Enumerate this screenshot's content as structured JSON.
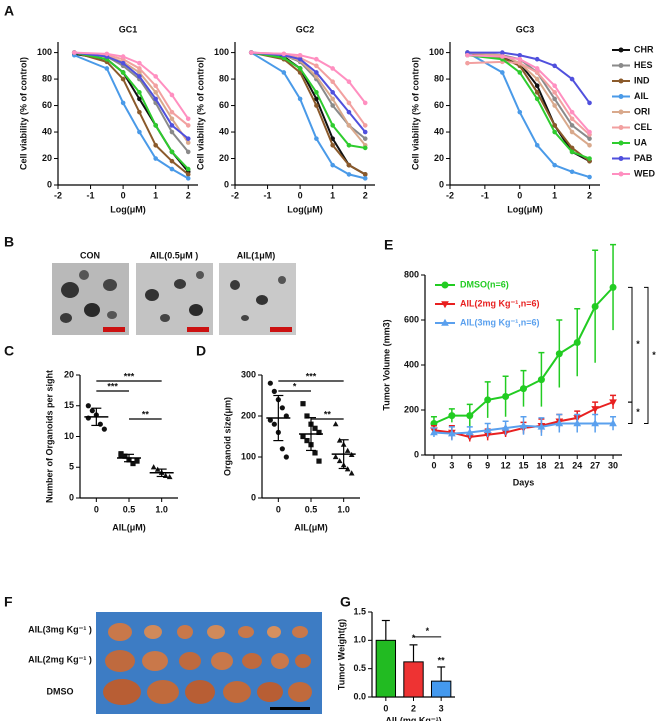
{
  "panel_labels": [
    "A",
    "B",
    "C",
    "D",
    "E",
    "F",
    "G"
  ],
  "organoid_images": [
    "CON",
    "AIL(0.5μM )",
    "AIL(1μM)"
  ],
  "tumor_rows": [
    "AIL(3mg Kg⁻¹ )",
    "AIL(2mg Kg⁻¹ )",
    "DMSO"
  ],
  "shared_legend": [
    {
      "name": "CHR",
      "color": "#111111"
    },
    {
      "name": "HES",
      "color": "#8a8a8a"
    },
    {
      "name": "IND",
      "color": "#8b5a2b"
    },
    {
      "name": "AIL",
      "color": "#4a9ae8"
    },
    {
      "name": "ORI",
      "color": "#d9a98c"
    },
    {
      "name": "CEL",
      "color": "#f2a0a0"
    },
    {
      "name": "UA",
      "color": "#2ecc2e"
    },
    {
      "name": "PAB",
      "color": "#5050dd"
    },
    {
      "name": "WED",
      "color": "#ff8fc0"
    }
  ],
  "chart_data": [
    {
      "type": "line",
      "title": "GC1",
      "xlabel": "Log(μM)",
      "ylabel": "Cell viability (% of control)",
      "x": [
        -1.5,
        -0.5,
        0,
        0.5,
        1,
        1.5,
        2
      ],
      "xlim": [
        -2,
        2.3
      ],
      "xticks": [
        -2,
        -1,
        0,
        1,
        2
      ],
      "ylim": [
        0,
        108
      ],
      "yticks": [
        0,
        20,
        40,
        60,
        80,
        100
      ],
      "series": [
        {
          "values": [
            99,
            95,
            85,
            65,
            45,
            25,
            10
          ]
        },
        {
          "values": [
            100,
            97,
            90,
            80,
            62,
            40,
            25
          ]
        },
        {
          "values": [
            100,
            93,
            80,
            55,
            30,
            18,
            8
          ]
        },
        {
          "values": [
            98,
            88,
            62,
            40,
            20,
            12,
            5
          ]
        },
        {
          "values": [
            100,
            97,
            93,
            85,
            70,
            50,
            32
          ]
        },
        {
          "values": [
            100,
            98,
            95,
            88,
            75,
            55,
            45
          ]
        },
        {
          "values": [
            100,
            95,
            85,
            70,
            45,
            25,
            12
          ]
        },
        {
          "values": [
            100,
            97,
            92,
            82,
            65,
            45,
            35
          ]
        },
        {
          "values": [
            100,
            99,
            97,
            92,
            82,
            68,
            50
          ]
        }
      ]
    },
    {
      "type": "line",
      "title": "GC2",
      "xlabel": "Log(μM)",
      "ylabel": "Cell viability (% of control)",
      "x": [
        -1.5,
        -0.5,
        0,
        0.5,
        1,
        1.5,
        2
      ],
      "xlim": [
        -2,
        2.3
      ],
      "xticks": [
        -2,
        -1,
        0,
        1,
        2
      ],
      "ylim": [
        0,
        108
      ],
      "yticks": [
        0,
        20,
        40,
        60,
        80,
        100
      ],
      "series": [
        {
          "values": [
            100,
            97,
            88,
            65,
            35,
            15,
            8
          ]
        },
        {
          "values": [
            100,
            98,
            93,
            80,
            60,
            45,
            35
          ]
        },
        {
          "values": [
            100,
            95,
            85,
            60,
            30,
            15,
            8
          ]
        },
        {
          "values": [
            100,
            85,
            65,
            35,
            15,
            8,
            5
          ]
        },
        {
          "values": [
            100,
            98,
            94,
            82,
            65,
            45,
            30
          ]
        },
        {
          "values": [
            100,
            99,
            96,
            90,
            78,
            62,
            45
          ]
        },
        {
          "values": [
            100,
            96,
            88,
            70,
            45,
            30,
            28
          ]
        },
        {
          "values": [
            100,
            98,
            95,
            85,
            70,
            55,
            40
          ]
        },
        {
          "values": [
            100,
            99,
            98,
            95,
            88,
            78,
            62
          ]
        }
      ]
    },
    {
      "type": "line",
      "title": "GC3",
      "xlabel": "Log(μM)",
      "ylabel": "Cell viability (% of control)",
      "x": [
        -1.5,
        -0.5,
        0,
        0.5,
        1,
        1.5,
        2
      ],
      "xlim": [
        -2,
        2.3
      ],
      "xticks": [
        -2,
        -1,
        0,
        1,
        2
      ],
      "ylim": [
        0,
        108
      ],
      "yticks": [
        0,
        20,
        40,
        60,
        80,
        100
      ],
      "series": [
        {
          "values": [
            100,
            97,
            92,
            75,
            45,
            25,
            18
          ]
        },
        {
          "values": [
            100,
            98,
            95,
            85,
            65,
            45,
            35
          ]
        },
        {
          "values": [
            100,
            96,
            90,
            70,
            45,
            28,
            18
          ]
        },
        {
          "values": [
            100,
            85,
            55,
            30,
            15,
            10,
            6
          ]
        },
        {
          "values": [
            100,
            98,
            92,
            80,
            60,
            40,
            30
          ]
        },
        {
          "values": [
            92,
            93,
            92,
            85,
            70,
            50,
            38
          ]
        },
        {
          "values": [
            98,
            95,
            85,
            65,
            40,
            25,
            20
          ]
        },
        {
          "values": [
            100,
            100,
            98,
            95,
            90,
            80,
            62
          ]
        },
        {
          "values": [
            98,
            97,
            95,
            88,
            75,
            55,
            40
          ]
        }
      ]
    },
    {
      "type": "dot",
      "xlabel": "AIL(μM)",
      "ylabel": "Number of Organoids per sight",
      "categories": [
        "0",
        "0.5",
        "1.0"
      ],
      "ylim": [
        0,
        20
      ],
      "yticks": [
        0,
        5,
        10,
        15,
        20
      ],
      "markers": [
        "circle",
        "square",
        "triangle-up"
      ],
      "groups": [
        {
          "points": [
            15,
            14.2,
            13.5,
            12,
            11.2,
            13
          ],
          "mean": 13.2,
          "sd": 1.4
        },
        {
          "points": [
            7.2,
            6.8,
            6.2,
            5.6,
            6,
            7
          ],
          "mean": 6.5,
          "sd": 0.6
        },
        {
          "points": [
            5,
            4.6,
            4.1,
            3.6,
            3.4
          ],
          "mean": 4.1,
          "sd": 0.6
        }
      ],
      "significance": [
        {
          "between": [
            0,
            2
          ],
          "label": "***"
        },
        {
          "between": [
            0,
            1
          ],
          "label": "***"
        },
        {
          "between": [
            1,
            2
          ],
          "label": "**"
        }
      ]
    },
    {
      "type": "dot",
      "xlabel": "AIL(μM)",
      "ylabel": "Organoid size(μm)",
      "categories": [
        "0",
        "0.5",
        "1.0"
      ],
      "ylim": [
        0,
        300
      ],
      "yticks": [
        0,
        100,
        200,
        300
      ],
      "markers": [
        "circle",
        "square",
        "triangle-up"
      ],
      "groups": [
        {
          "points": [
            280,
            260,
            240,
            220,
            200,
            190,
            180,
            160,
            120,
            100
          ],
          "mean": 195,
          "sd": 55
        },
        {
          "points": [
            230,
            200,
            180,
            170,
            160,
            150,
            140,
            130,
            110,
            90
          ],
          "mean": 156,
          "sd": 40
        },
        {
          "points": [
            180,
            140,
            130,
            115,
            105,
            100,
            90,
            80,
            70,
            60
          ],
          "mean": 107,
          "sd": 35
        }
      ],
      "significance": [
        {
          "between": [
            0,
            2
          ],
          "label": "***"
        },
        {
          "between": [
            0,
            1
          ],
          "label": "*"
        },
        {
          "between": [
            1,
            2
          ],
          "label": "**"
        }
      ]
    },
    {
      "type": "line",
      "xlabel": "Days",
      "ylabel": "Tumor Volume (mm3)",
      "x": [
        0,
        3,
        6,
        9,
        12,
        15,
        18,
        21,
        24,
        27,
        30
      ],
      "xlim": [
        -1.5,
        31.5
      ],
      "xticks": [
        0,
        3,
        6,
        9,
        12,
        15,
        18,
        21,
        24,
        27,
        30
      ],
      "ylim": [
        0,
        800
      ],
      "yticks": [
        0,
        200,
        400,
        600,
        800
      ],
      "legend": "upper left",
      "series": [
        {
          "name": "DMSO(n=6)",
          "color": "#22cc22",
          "marker": "circle",
          "values": [
            140,
            175,
            175,
            245,
            260,
            295,
            335,
            450,
            500,
            660,
            745
          ],
          "errors": [
            30,
            30,
            50,
            80,
            90,
            80,
            120,
            150,
            150,
            250,
            190
          ]
        },
        {
          "name": "AIL(2mg Kg⁻¹,n=6)",
          "color": "#e82020",
          "marker": "triangle-down",
          "values": [
            110,
            100,
            80,
            90,
            100,
            120,
            130,
            150,
            165,
            205,
            235
          ],
          "errors": [
            20,
            30,
            20,
            25,
            20,
            25,
            30,
            30,
            30,
            30,
            30
          ]
        },
        {
          "name": "AIL(3mg Kg⁻¹,n=6)",
          "color": "#5aa0ee",
          "marker": "triangle-up",
          "values": [
            100,
            95,
            100,
            110,
            120,
            130,
            125,
            140,
            140,
            140,
            140
          ],
          "errors": [
            20,
            30,
            25,
            30,
            30,
            40,
            40,
            40,
            40,
            40,
            30
          ]
        }
      ],
      "significance": [
        {
          "between": [
            0,
            1
          ],
          "label": "*"
        },
        {
          "between": [
            0,
            2
          ],
          "label": "*"
        },
        {
          "between": [
            1,
            2
          ],
          "label": "*"
        }
      ]
    },
    {
      "type": "bar",
      "xlabel": "AIL(mg Kg⁻¹)",
      "ylabel": "Tumor Weight(g)",
      "categories": [
        "0",
        "2",
        "3"
      ],
      "values": [
        1.0,
        0.62,
        0.28
      ],
      "errors": [
        0.35,
        0.3,
        0.25
      ],
      "colors": [
        "#22bb22",
        "#ee3333",
        "#4499ee"
      ],
      "ylim": [
        0,
        1.5
      ],
      "yticks": [
        {
          "value": 0,
          "label": "0.0"
        },
        {
          "value": 0.5,
          "label": "0.5"
        },
        {
          "value": 1,
          "label": "1.0"
        },
        {
          "value": 1.5,
          "label": "1.5"
        }
      ],
      "annotations": [
        {
          "bar": 1,
          "label": "*"
        },
        {
          "bar": 2,
          "label": "**"
        }
      ],
      "significance": [
        {
          "between": [
            1,
            2
          ],
          "label": "*"
        }
      ]
    }
  ]
}
